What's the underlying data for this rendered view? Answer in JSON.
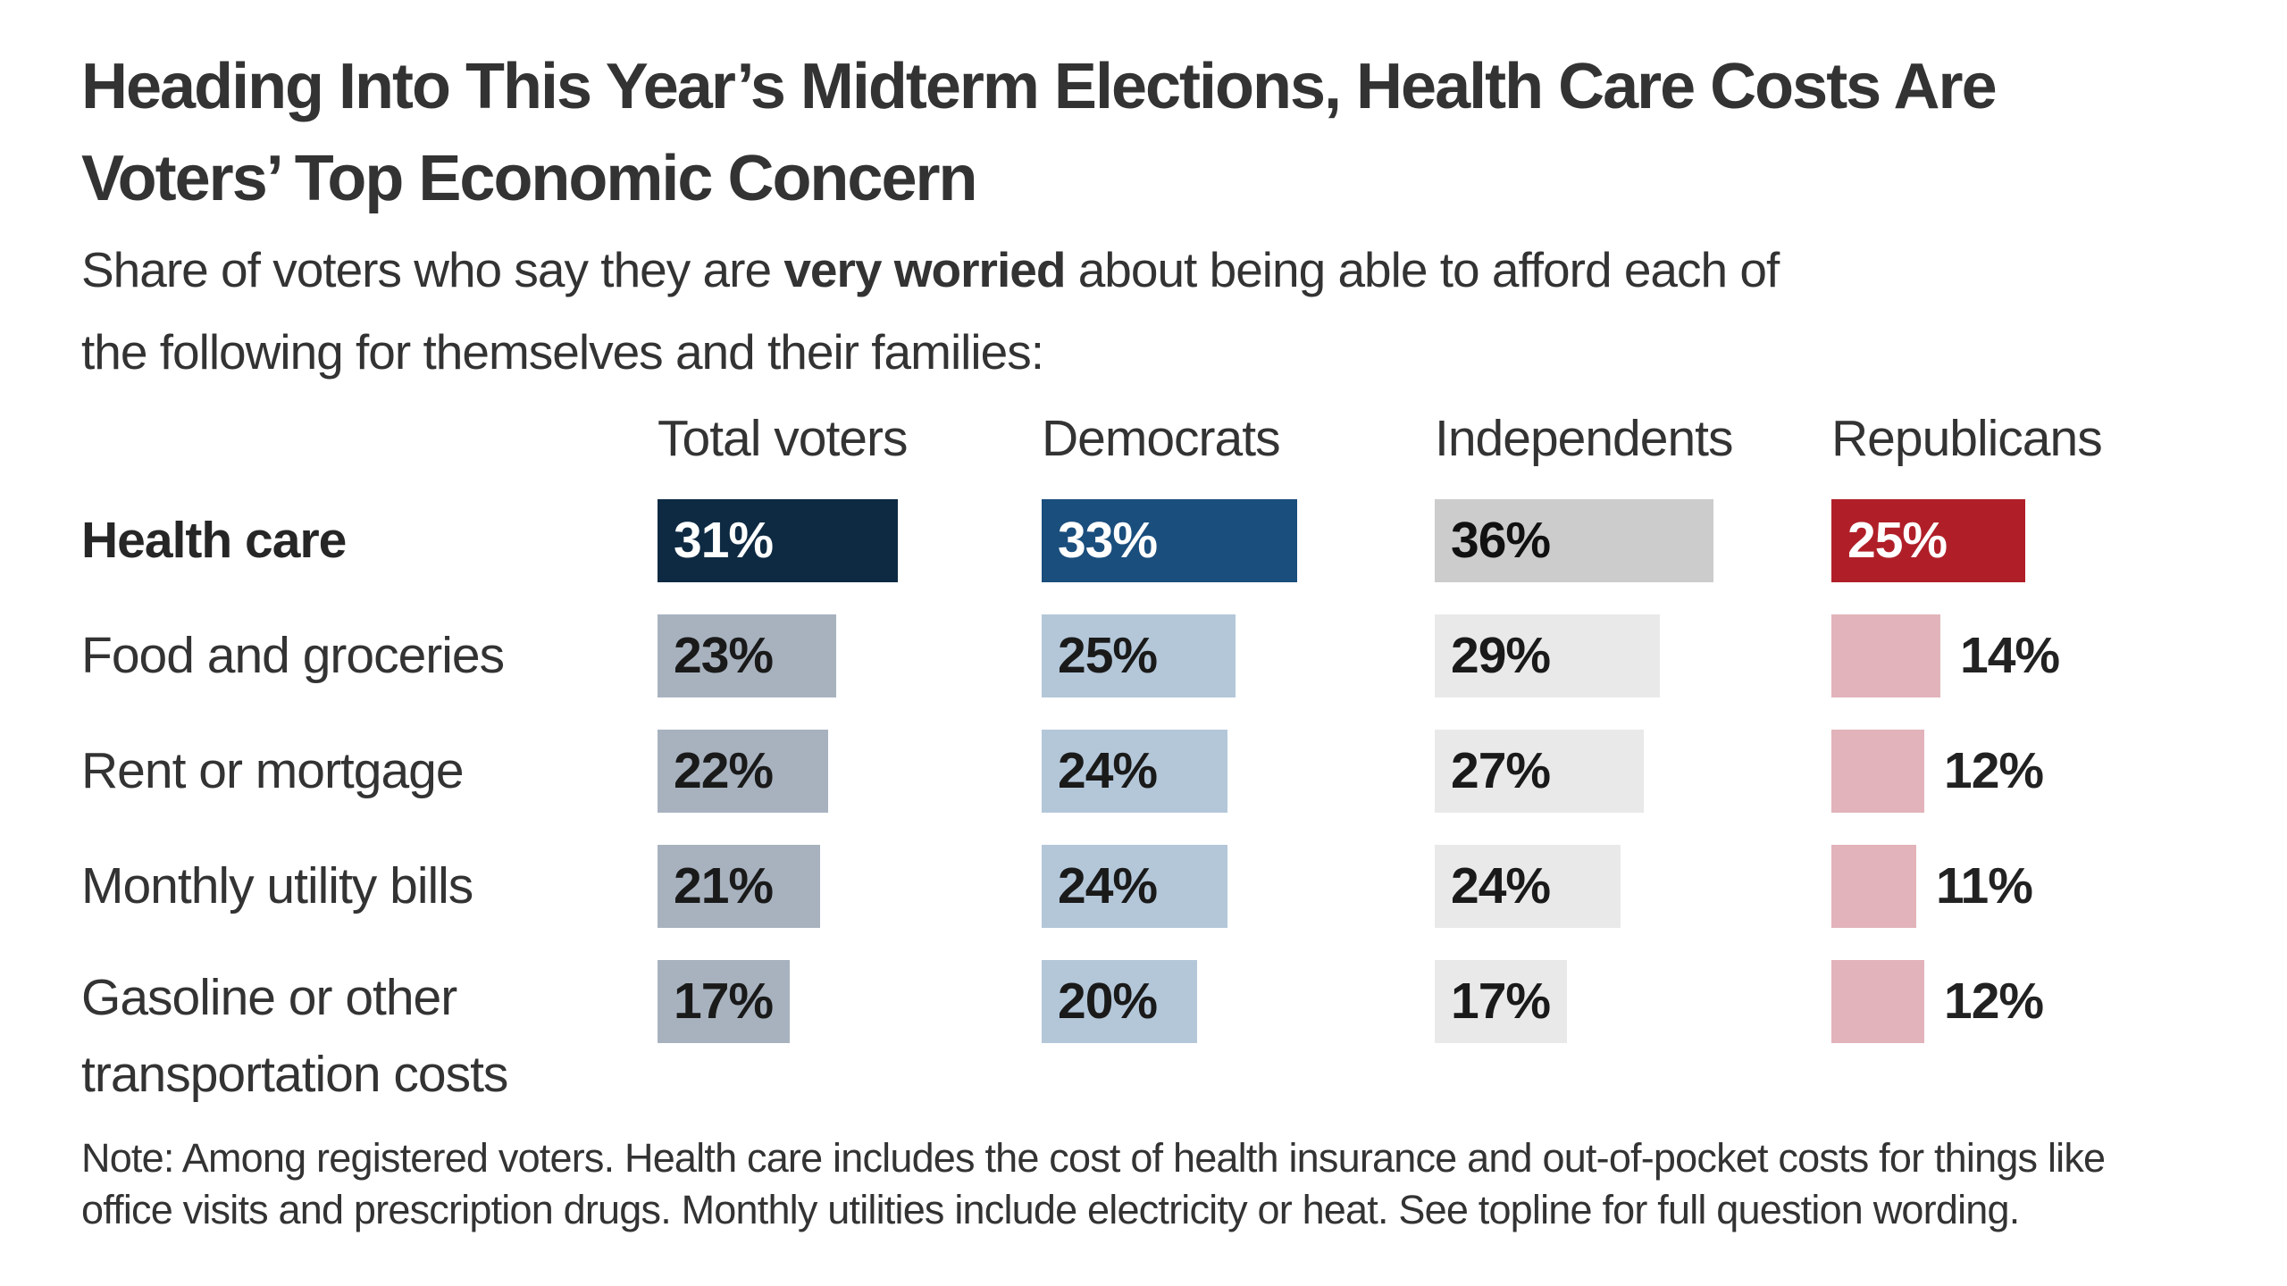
{
  "page": {
    "background": "#ffffff",
    "text_color": "#333333",
    "title_line1": "Heading Into This Year’s Midterm Elections, Health Care Costs Are",
    "title_line2": "Voters’ Top Economic Concern",
    "subtitle": {
      "line1_pre": "Share of voters who say they are ",
      "line1_bold": "very worried",
      "line1_post": " about being able to afford each of",
      "line2": "the following for themselves and their families:"
    },
    "note_line1": "Note: Among registered voters. Health care includes the cost of health insurance and out-of-pocket costs for things like",
    "note_line2": "office visits and prescription drugs. Monthly utilities include electricity or heat. See topline for full question wording."
  },
  "chart_data": {
    "type": "bar",
    "orientation": "horizontal",
    "unit": "percent",
    "value_suffix": "%",
    "gridlines": false,
    "legend_position": "column headers above each bar group",
    "value_axis_range": [
      0,
      40
    ],
    "categories": [
      {
        "label": "Health care",
        "emphasis": true
      },
      {
        "label": "Food and groceries",
        "emphasis": false
      },
      {
        "label": "Rent or mortgage",
        "emphasis": false
      },
      {
        "label": "Monthly utility bills",
        "emphasis": false
      },
      {
        "label": "Gasoline or other transportation costs",
        "emphasis": false
      }
    ],
    "series": [
      {
        "name": "Total voters",
        "values": [
          31,
          23,
          22,
          21,
          17
        ],
        "bar_color_first_row": "#0e2a43",
        "bar_color_other_rows": "#a8b2bf",
        "text_color_first_row": "#ffffff",
        "text_color_other_rows": "#1a1a1a",
        "value_label_placement": "inside"
      },
      {
        "name": "Democrats",
        "values": [
          33,
          25,
          24,
          24,
          20
        ],
        "bar_color_first_row": "#1a4e7d",
        "bar_color_other_rows": "#b4c7d9",
        "text_color_first_row": "#ffffff",
        "text_color_other_rows": "#1a1a1a",
        "value_label_placement": "inside"
      },
      {
        "name": "Independents",
        "values": [
          36,
          29,
          27,
          24,
          17
        ],
        "bar_color_first_row": "#cccccc",
        "bar_color_other_rows": "#e9e9e9",
        "text_color_first_row": "#111111",
        "text_color_other_rows": "#1a1a1a",
        "value_label_placement": "inside"
      },
      {
        "name": "Republicans",
        "values": [
          25,
          14,
          12,
          11,
          12
        ],
        "bar_color_first_row": "#b01f28",
        "bar_color_other_rows": "#e2b3ba",
        "text_color_first_row": "#ffffff",
        "text_color_other_rows": "#222222",
        "value_label_placement": "inside_first_row_then_outside"
      }
    ]
  }
}
